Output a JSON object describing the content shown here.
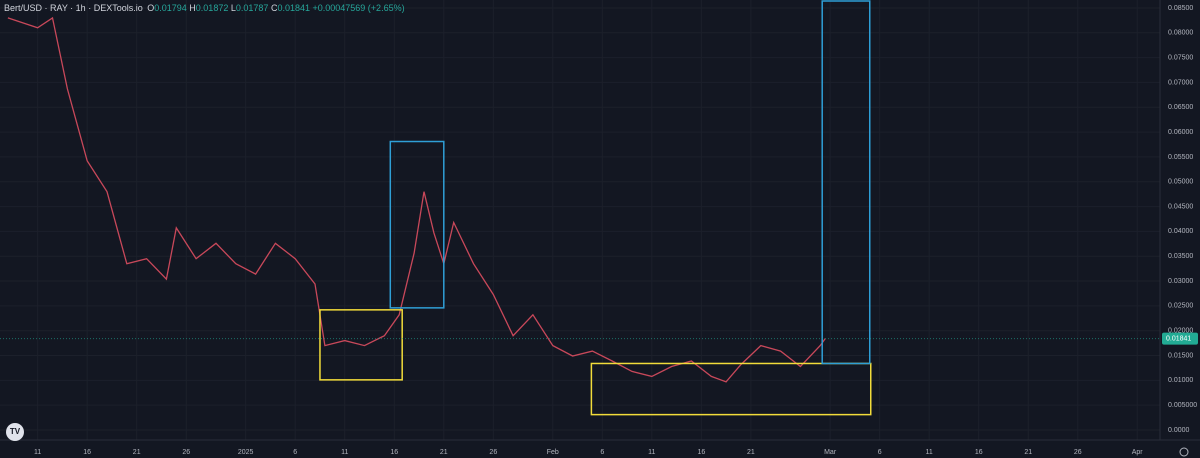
{
  "chart_data": {
    "type": "line",
    "symbol": "Bert/USD · RAY · 1h · DEXTools.io",
    "ohlc": [
      {
        "key": "O",
        "value": "0.01794"
      },
      {
        "key": "H",
        "value": "0.01872"
      },
      {
        "key": "L",
        "value": "0.01787"
      },
      {
        "key": "C",
        "value": "0.01841"
      }
    ],
    "change": "+0.00047569 (+2.65%)",
    "x": [
      -3,
      0,
      1.5,
      3,
      5,
      7,
      9,
      11,
      13,
      14,
      16,
      18,
      20,
      22,
      24,
      26,
      28,
      29,
      31,
      33,
      35,
      36.5,
      38,
      39,
      40,
      41,
      42,
      44,
      46,
      48,
      50,
      52,
      54,
      56,
      58,
      60,
      62,
      64,
      66,
      68,
      69.5,
      71,
      73,
      75,
      77,
      79,
      79.5
    ],
    "values": [
      0.083,
      0.081,
      0.083,
      0.0687,
      0.0542,
      0.048,
      0.0335,
      0.0345,
      0.0304,
      0.0407,
      0.0345,
      0.0376,
      0.0335,
      0.0314,
      0.0376,
      0.0345,
      0.0294,
      0.017,
      0.018,
      0.017,
      0.019,
      0.0232,
      0.0356,
      0.048,
      0.0397,
      0.0335,
      0.0418,
      0.0335,
      0.0273,
      0.019,
      0.0232,
      0.017,
      0.0149,
      0.0159,
      0.0139,
      0.0118,
      0.0108,
      0.0128,
      0.0139,
      0.0108,
      0.0097,
      0.0132,
      0.017,
      0.0159,
      0.0128,
      0.017,
      0.01841
    ],
    "color": "#c8485a",
    "last_price": 0.01841,
    "last_price_color": "#22ab94",
    "boxes": [
      {
        "color": "#f2dc3a",
        "x": [
          28.5,
          36.8
        ],
        "y": [
          0.0101,
          0.0242
        ]
      },
      {
        "color": "#2f9fd6",
        "x": [
          35.6,
          41.0
        ],
        "y": [
          0.0246,
          0.0581
        ]
      },
      {
        "color": "#f2dc3a",
        "x": [
          55.9,
          84.1
        ],
        "y": [
          0.0031,
          0.0134
        ]
      },
      {
        "color": "#2f9fd6",
        "x": [
          79.2,
          84.0
        ],
        "y": [
          0.0134,
          0.0864
        ]
      }
    ],
    "xlim": [
      -3.8,
      113.3
    ],
    "ylim": [
      -0.0004,
      0.0866
    ],
    "xticks": [
      {
        "value": 0,
        "label": "11"
      },
      {
        "value": 5,
        "label": "16"
      },
      {
        "value": 10,
        "label": "21"
      },
      {
        "value": 15,
        "label": "26"
      },
      {
        "value": 21,
        "label": "2025"
      },
      {
        "value": 26,
        "label": "6"
      },
      {
        "value": 31,
        "label": "11"
      },
      {
        "value": 36,
        "label": "16"
      },
      {
        "value": 41,
        "label": "21"
      },
      {
        "value": 46,
        "label": "26"
      },
      {
        "value": 52,
        "label": "Feb"
      },
      {
        "value": 57,
        "label": "6"
      },
      {
        "value": 62,
        "label": "11"
      },
      {
        "value": 67,
        "label": "16"
      },
      {
        "value": 72,
        "label": "21"
      },
      {
        "value": 80,
        "label": "Mar"
      },
      {
        "value": 85,
        "label": "6"
      },
      {
        "value": 90,
        "label": "11"
      },
      {
        "value": 95,
        "label": "16"
      },
      {
        "value": 100,
        "label": "21"
      },
      {
        "value": 105,
        "label": "26"
      },
      {
        "value": 111,
        "label": "Apr"
      }
    ],
    "yticks": [
      {
        "value": 0.085,
        "label": "0.08500"
      },
      {
        "value": 0.08,
        "label": "0.08000"
      },
      {
        "value": 0.075,
        "label": "0.07500"
      },
      {
        "value": 0.07,
        "label": "0.07000"
      },
      {
        "value": 0.065,
        "label": "0.06500"
      },
      {
        "value": 0.06,
        "label": "0.06000"
      },
      {
        "value": 0.055,
        "label": "0.05500"
      },
      {
        "value": 0.05,
        "label": "0.05000"
      },
      {
        "value": 0.045,
        "label": "0.04500"
      },
      {
        "value": 0.04,
        "label": "0.04000"
      },
      {
        "value": 0.035,
        "label": "0.03500"
      },
      {
        "value": 0.03,
        "label": "0.03000"
      },
      {
        "value": 0.025,
        "label": "0.02500"
      },
      {
        "value": 0.02,
        "label": "0.02000"
      },
      {
        "value": 0.015,
        "label": "0.01500"
      },
      {
        "value": 0.01,
        "label": "0.01000"
      },
      {
        "value": 0.005,
        "label": "0.005000"
      },
      {
        "value": 0,
        "label": "0.0000"
      }
    ],
    "grid": true
  }
}
